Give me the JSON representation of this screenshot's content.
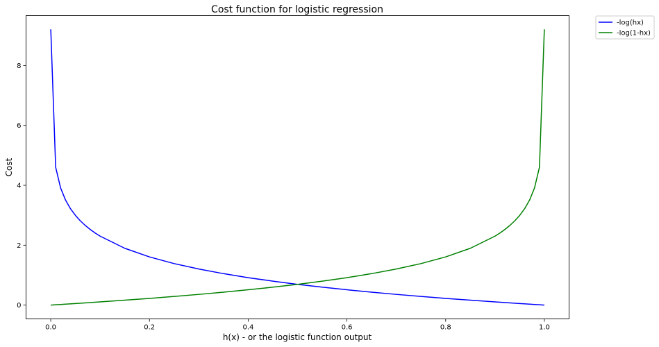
{
  "chart_data": {
    "type": "line",
    "title": "Cost function for logistic regression",
    "xlabel": "h(x) - or the logistic function output",
    "ylabel": "Cost",
    "xlim": [
      -0.05,
      1.05
    ],
    "ylim": [
      -0.4614,
      9.668
    ],
    "xticks": [
      "0.0",
      "0.2",
      "0.4",
      "0.6",
      "0.8",
      "1.0"
    ],
    "yticks": [
      "0",
      "2",
      "4",
      "6",
      "8"
    ],
    "grid": false,
    "legend_position": "outside-top-right",
    "series": [
      {
        "name": "-log(hx)",
        "color": "#0000ff",
        "x": [
          0.0001,
          0.01,
          0.02,
          0.03,
          0.04,
          0.05,
          0.06,
          0.07,
          0.08,
          0.09,
          0.1,
          0.15,
          0.2,
          0.25,
          0.3,
          0.35,
          0.4,
          0.45,
          0.5,
          0.55,
          0.6,
          0.65,
          0.7,
          0.75,
          0.8,
          0.85,
          0.9,
          0.95,
          0.97,
          0.98,
          0.99,
          0.9999
        ],
        "y": [
          9.21,
          4.605,
          3.912,
          3.507,
          3.219,
          2.996,
          2.813,
          2.659,
          2.526,
          2.408,
          2.303,
          1.897,
          1.609,
          1.386,
          1.204,
          1.05,
          0.916,
          0.799,
          0.693,
          0.598,
          0.511,
          0.431,
          0.357,
          0.288,
          0.223,
          0.163,
          0.105,
          0.051,
          0.03,
          0.02,
          0.01,
          0.0001
        ]
      },
      {
        "name": "-log(1-hx)",
        "color": "#008000",
        "x": [
          0.0001,
          0.01,
          0.02,
          0.03,
          0.05,
          0.1,
          0.15,
          0.2,
          0.25,
          0.3,
          0.35,
          0.4,
          0.45,
          0.5,
          0.55,
          0.6,
          0.65,
          0.7,
          0.75,
          0.8,
          0.85,
          0.9,
          0.91,
          0.92,
          0.93,
          0.94,
          0.95,
          0.96,
          0.97,
          0.98,
          0.99,
          0.9999
        ],
        "y": [
          0.0001,
          0.01,
          0.02,
          0.03,
          0.051,
          0.105,
          0.163,
          0.223,
          0.288,
          0.357,
          0.431,
          0.511,
          0.598,
          0.693,
          0.799,
          0.916,
          1.05,
          1.204,
          1.386,
          1.609,
          1.897,
          2.303,
          2.408,
          2.526,
          2.659,
          2.813,
          2.996,
          3.219,
          3.507,
          3.912,
          4.605,
          9.21
        ]
      }
    ]
  }
}
